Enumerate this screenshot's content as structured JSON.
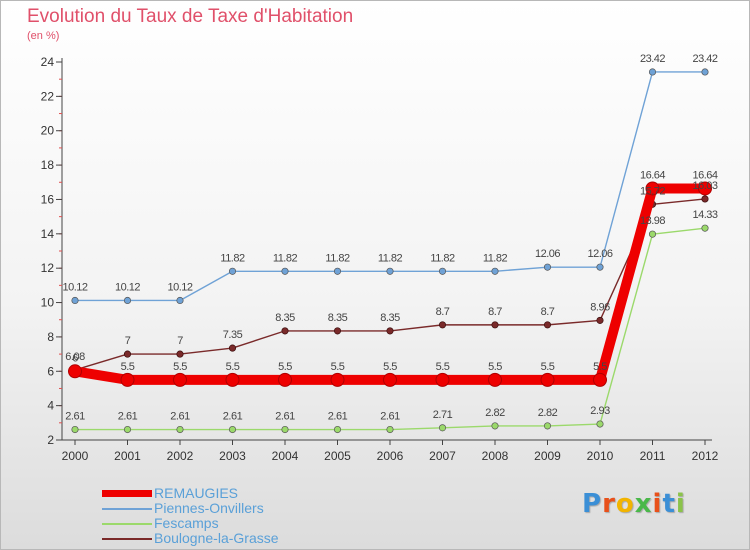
{
  "chart_data": {
    "type": "line",
    "title": "Evolution du Taux de Taxe d'Habitation",
    "subtitle": "(en %)",
    "x": [
      "2000",
      "2001",
      "2002",
      "2003",
      "2004",
      "2005",
      "2006",
      "2007",
      "2008",
      "2009",
      "2010",
      "2011",
      "2012"
    ],
    "ylim": [
      2,
      24
    ],
    "yticks": [
      "2",
      "4",
      "6",
      "8",
      "10",
      "12",
      "14",
      "16",
      "18",
      "20",
      "22",
      "24"
    ],
    "grid": false,
    "legend_position": "bottom-left",
    "series": [
      {
        "name": "Piennes-Onvillers",
        "color": "#6fa2d6",
        "values": [
          10.12,
          10.12,
          10.12,
          11.82,
          11.82,
          11.82,
          11.82,
          11.82,
          11.82,
          12.06,
          12.06,
          23.42,
          23.42
        ],
        "labels": [
          "10.12",
          "10.12",
          "10.12",
          "11.82",
          "11.82",
          "11.82",
          "11.82",
          "11.82",
          "11.82",
          "12.06",
          "12.06",
          "23.42",
          "23.42"
        ]
      },
      {
        "name": "Boulogne-la-Grasse",
        "color": "#7a2a2a",
        "values": [
          6.08,
          7,
          7,
          7.35,
          8.35,
          8.35,
          8.35,
          8.7,
          8.7,
          8.7,
          8.96,
          15.72,
          16.03
        ],
        "labels": [
          "6.08",
          "7",
          "7",
          "7.35",
          "8.35",
          "8.35",
          "8.35",
          "8.7",
          "8.7",
          "8.7",
          "8.96",
          "15.72",
          "16.03"
        ]
      },
      {
        "name": "Fescamps",
        "color": "#9bd96b",
        "values": [
          2.61,
          2.61,
          2.61,
          2.61,
          2.61,
          2.61,
          2.61,
          2.71,
          2.82,
          2.82,
          2.93,
          13.98,
          14.33
        ],
        "labels": [
          "2.61",
          "2.61",
          "2.61",
          "2.61",
          "2.61",
          "2.61",
          "2.61",
          "2.71",
          "2.82",
          "2.82",
          "2.93",
          "13.98",
          "14.33"
        ]
      },
      {
        "name": "REMAUGIES",
        "color": "#ee0000",
        "values": [
          6,
          5.5,
          5.5,
          5.5,
          5.5,
          5.5,
          5.5,
          5.5,
          5.5,
          5.5,
          5.5,
          16.64,
          16.64
        ],
        "labels": [
          "6",
          "5.5",
          "5.5",
          "5.5",
          "5.5",
          "5.5",
          "5.5",
          "5.5",
          "5.5",
          "5.5",
          "5.5",
          "16.64",
          "16.64"
        ]
      }
    ]
  },
  "legend": {
    "items": [
      {
        "name": "REMAUGIES",
        "color": "#ee0000"
      },
      {
        "name": "Piennes-Onvillers",
        "color": "#6fa2d6"
      },
      {
        "name": "Fescamps",
        "color": "#9bd96b"
      },
      {
        "name": "Boulogne-la-Grasse",
        "color": "#7a2a2a"
      }
    ]
  },
  "brand": {
    "letters": [
      "P",
      "r",
      "o",
      "x",
      "i",
      "t",
      "i"
    ],
    "colors": [
      "#3b8fd6",
      "#e8501a",
      "#f2b400",
      "#4ab84a",
      "#e8501a",
      "#3b8fd6",
      "#8bc34a"
    ]
  }
}
